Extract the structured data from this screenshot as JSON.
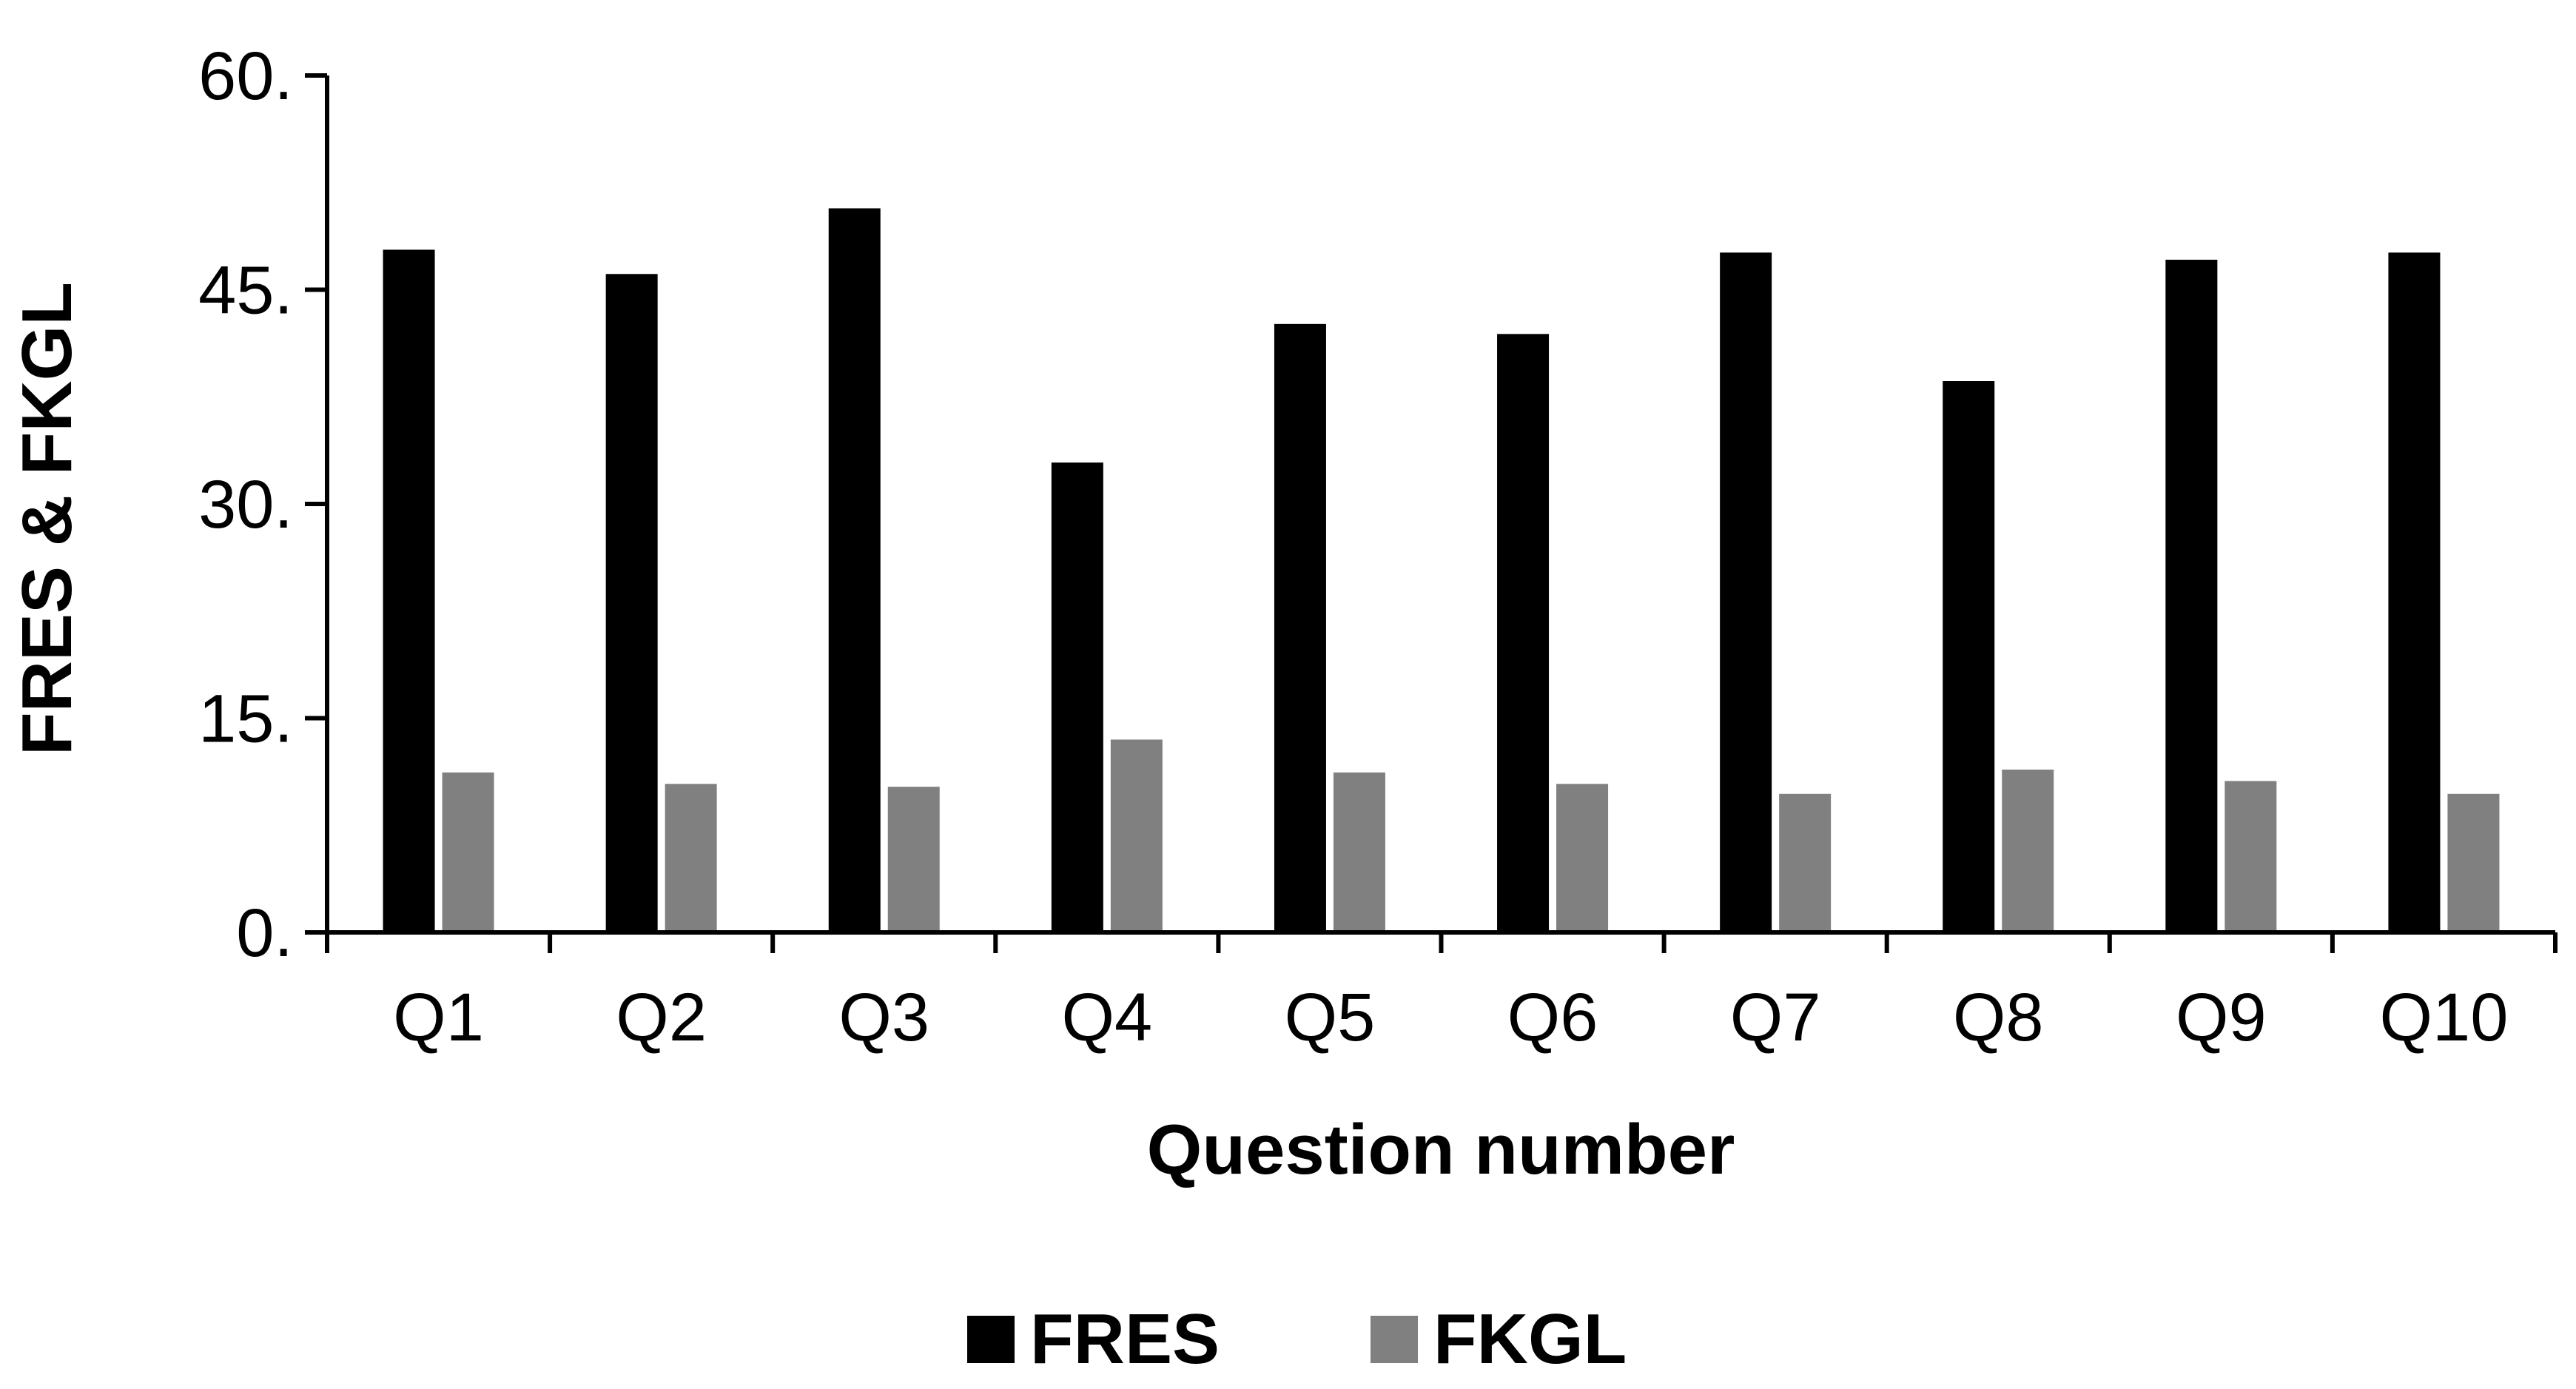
{
  "chart_data": {
    "type": "bar",
    "title": "",
    "xlabel": "Question number",
    "ylabel": "FRES & FKGL",
    "categories": [
      "Q1",
      "Q2",
      "Q3",
      "Q4",
      "Q5",
      "Q6",
      "Q7",
      "Q8",
      "Q9",
      "Q10"
    ],
    "series": [
      {
        "name": "FRES",
        "color": "#000000",
        "values": [
          47.8,
          46.1,
          50.7,
          32.9,
          42.6,
          41.9,
          47.6,
          38.6,
          47.1,
          47.6
        ]
      },
      {
        "name": "FKGL",
        "color": "#808080",
        "values": [
          11.2,
          10.4,
          10.2,
          13.5,
          11.2,
          10.4,
          9.7,
          11.4,
          10.6,
          9.7
        ]
      }
    ],
    "ylim": [
      0,
      60
    ],
    "yticks": [
      0,
      15,
      30,
      45,
      60
    ],
    "ytick_labels": [
      "0.",
      "15.",
      "30.",
      "45.",
      "60."
    ],
    "grid": false,
    "legend_position": "bottom-center"
  }
}
